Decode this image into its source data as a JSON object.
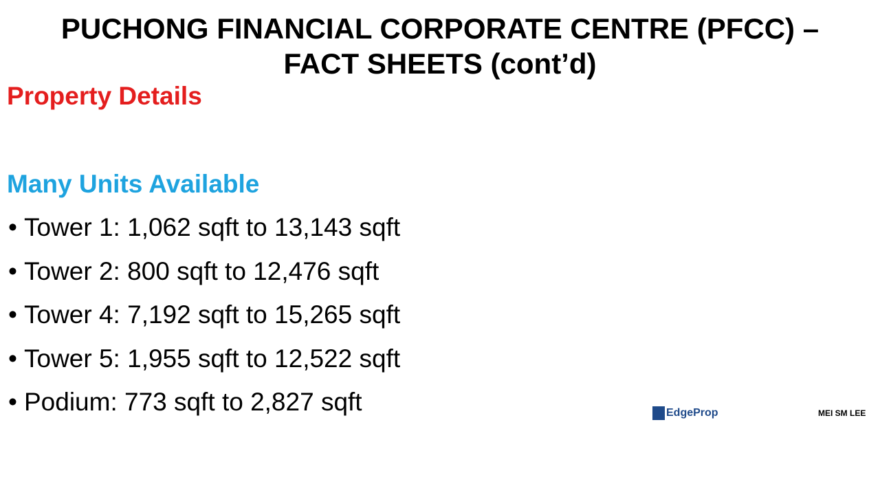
{
  "title_lines": [
    "PUCHONG FINANCIAL CORPORATE CENTRE (PFCC) –",
    "FACT SHEETS (cont’d)"
  ],
  "section_heading": "Property Details",
  "subheading": "Many Units Available",
  "bullets": [
    "Tower 1: 1,062 sqft to 13,143 sqft",
    "Tower 2: 800 sqft to 12,476 sqft",
    "Tower 4: 7,192 sqft to 15,265 sqft",
    "Tower 5: 1,955 sqft to 12,522 sqft",
    "Podium: 773 sqft to 2,827 sqft"
  ],
  "logo": "EdgeProp",
  "watermark": "MEI SM LEE"
}
